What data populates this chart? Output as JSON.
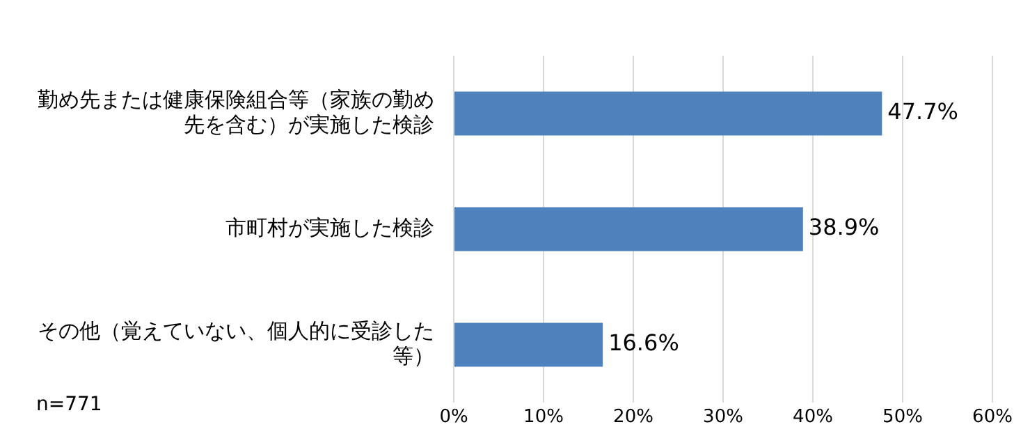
{
  "chart_data": {
    "type": "bar",
    "orientation": "horizontal",
    "categories": [
      "勤め先または健康保険組合等（家族の勤め先を含む）が実施した検診",
      "市町村が実施した検診",
      "その他（覚えていない、個人的に受診した等）"
    ],
    "values": [
      47.7,
      38.9,
      16.6
    ],
    "color": "#4f81bd",
    "value_labels": [
      "47.7%",
      "38.9%",
      "16.6%"
    ],
    "xlim": [
      0,
      60
    ],
    "xticks": [
      {
        "value": 0,
        "label": "0%"
      },
      {
        "value": 10,
        "label": "10%"
      },
      {
        "value": 20,
        "label": "20%"
      },
      {
        "value": 30,
        "label": "30%"
      },
      {
        "value": 40,
        "label": "40%"
      },
      {
        "value": 50,
        "label": "50%"
      },
      {
        "value": 60,
        "label": "60%"
      }
    ],
    "grid": "x",
    "annotations": [
      "n=771"
    ]
  }
}
